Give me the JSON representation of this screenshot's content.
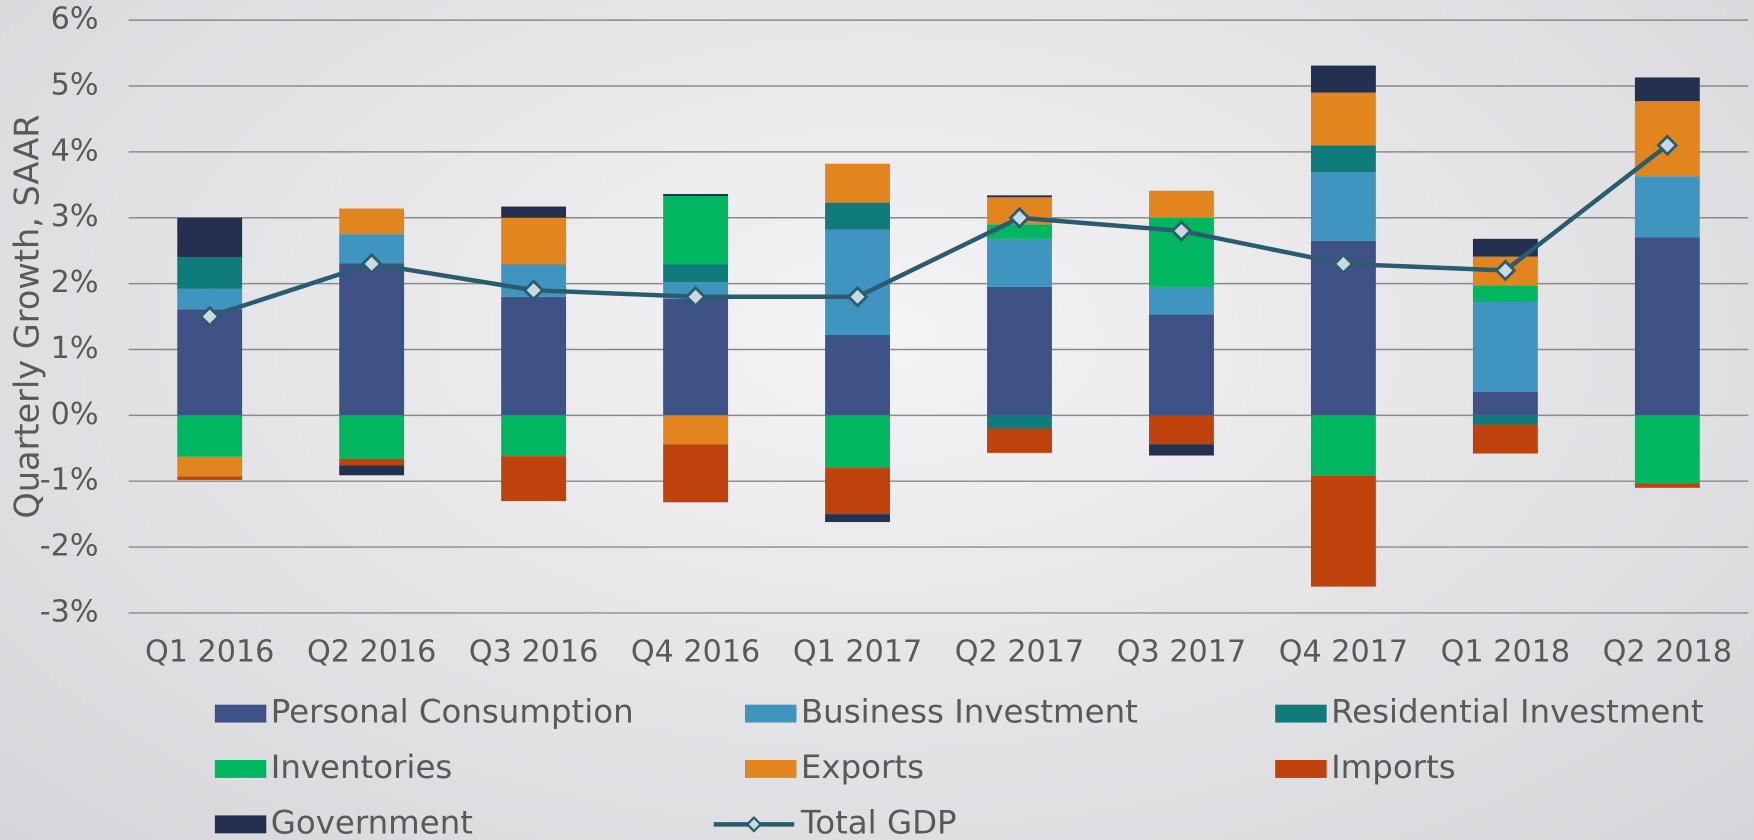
{
  "chart_data": {
    "type": "bar",
    "stacked": true,
    "y_label": "Quarterly Growth, SAAR",
    "categories": [
      "Q1 2016",
      "Q2 2016",
      "Q3 2016",
      "Q4 2016",
      "Q1 2017",
      "Q2 2017",
      "Q3 2017",
      "Q4 2017",
      "Q1 2018",
      "Q2 2018"
    ],
    "series": [
      {
        "name": "Personal Consumption",
        "color": "#3f5288",
        "values": [
          1.61,
          2.31,
          1.8,
          1.77,
          1.22,
          1.95,
          1.53,
          2.65,
          0.36,
          2.7
        ]
      },
      {
        "name": "Business Investment",
        "color": "#3f95bf",
        "values": [
          0.31,
          0.44,
          0.49,
          0.25,
          1.6,
          0.73,
          0.42,
          1.04,
          1.36,
          0.93
        ]
      },
      {
        "name": "Residential Investment",
        "color": "#107b7b",
        "values": [
          0.48,
          0,
          0,
          0.27,
          0.41,
          -0.2,
          0,
          0.41,
          -0.14,
          0
        ]
      },
      {
        "name": "Inventories",
        "color": "#00b661",
        "values": [
          -0.63,
          -0.66,
          -0.62,
          1.04,
          -0.8,
          0.22,
          1.05,
          -0.92,
          0.25,
          -1.03
        ]
      },
      {
        "name": "Exports",
        "color": "#e2851f",
        "values": [
          -0.3,
          0.39,
          0.71,
          -0.44,
          0.59,
          0.41,
          0.41,
          0.8,
          0.44,
          1.14
        ]
      },
      {
        "name": "Imports",
        "color": "#bf410b",
        "values": [
          -0.05,
          -0.1,
          -0.68,
          -0.88,
          -0.7,
          -0.37,
          -0.44,
          -1.68,
          -0.44,
          -0.07
        ]
      },
      {
        "name": "Government",
        "color": "#23304f",
        "values": [
          0.6,
          -0.15,
          0.17,
          0.03,
          -0.12,
          0.03,
          -0.17,
          0.41,
          0.27,
          0.36
        ]
      },
      {
        "name": "Total GDP",
        "color": "#2b5b6e",
        "type": "line",
        "values": [
          1.5,
          2.3,
          1.9,
          1.8,
          1.8,
          3.0,
          2.8,
          2.3,
          2.2,
          4.1
        ]
      }
    ],
    "ylim": [
      -3,
      6
    ],
    "yticks": [
      {
        "value": -3,
        "label": "-3%"
      },
      {
        "value": -2,
        "label": "-2%"
      },
      {
        "value": -1,
        "label": "-1%"
      },
      {
        "value": 0,
        "label": "0%"
      },
      {
        "value": 1,
        "label": "1%"
      },
      {
        "value": 2,
        "label": "2%"
      },
      {
        "value": 3,
        "label": "3%"
      },
      {
        "value": 4,
        "label": "4%"
      },
      {
        "value": 5,
        "label": "5%"
      },
      {
        "value": 6,
        "label": "6%"
      }
    ],
    "grid": true,
    "legend": "bottom"
  }
}
